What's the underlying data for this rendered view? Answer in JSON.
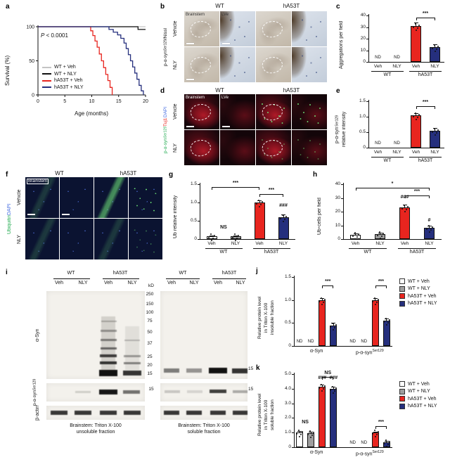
{
  "panel_a": {
    "letter": "a",
    "ylabel": "Survival (%)",
    "xlabel": "Age (months)",
    "pvalue_sym": "P",
    "pvalue_rest": " < 0.0001",
    "chart": {
      "type": "line",
      "xmax": 20,
      "ymax": 100,
      "xticks": [
        0,
        5,
        10,
        15,
        20
      ],
      "yticks": [
        0,
        50,
        100
      ],
      "series": [
        {
          "name": "WT + Veh",
          "color": "#c4c4c4",
          "points": [
            [
              0,
              100
            ],
            [
              20,
              100
            ]
          ]
        },
        {
          "name": "WT + NLY",
          "color": "#111111",
          "points": [
            [
              0,
              100
            ],
            [
              18.6,
              100
            ],
            [
              18.6,
              96
            ],
            [
              20,
              96
            ]
          ]
        },
        {
          "name": "hA53T + Veh",
          "color": "#e8251f",
          "points": [
            [
              0,
              100
            ],
            [
              9.8,
              100
            ],
            [
              9.8,
              94
            ],
            [
              10.2,
              94
            ],
            [
              10.2,
              87
            ],
            [
              10.6,
              87
            ],
            [
              10.6,
              79
            ],
            [
              11,
              79
            ],
            [
              11,
              70
            ],
            [
              11.4,
              70
            ],
            [
              11.4,
              60
            ],
            [
              11.8,
              60
            ],
            [
              11.8,
              50
            ],
            [
              12.2,
              50
            ],
            [
              12.2,
              40
            ],
            [
              12.6,
              40
            ],
            [
              12.6,
              30
            ],
            [
              13,
              30
            ],
            [
              13,
              21
            ],
            [
              13.4,
              21
            ],
            [
              13.4,
              11
            ],
            [
              13.8,
              11
            ],
            [
              13.8,
              0
            ]
          ]
        },
        {
          "name": "hA53T + NLY",
          "color": "#252f7d",
          "points": [
            [
              0,
              100
            ],
            [
              13.2,
              100
            ],
            [
              13.2,
              96
            ],
            [
              14,
              96
            ],
            [
              14,
              92
            ],
            [
              14.8,
              92
            ],
            [
              14.8,
              88
            ],
            [
              15.4,
              88
            ],
            [
              15.4,
              83
            ],
            [
              16,
              83
            ],
            [
              16,
              76
            ],
            [
              16.4,
              76
            ],
            [
              16.4,
              68
            ],
            [
              16.8,
              68
            ],
            [
              16.8,
              59
            ],
            [
              17.2,
              59
            ],
            [
              17.2,
              50
            ],
            [
              17.6,
              50
            ],
            [
              17.6,
              41
            ],
            [
              18,
              41
            ],
            [
              18,
              32
            ],
            [
              18.4,
              32
            ],
            [
              18.4,
              23
            ],
            [
              18.8,
              23
            ],
            [
              18.8,
              14
            ],
            [
              19.2,
              14
            ],
            [
              19.2,
              6
            ],
            [
              19.6,
              6
            ],
            [
              19.6,
              0
            ]
          ]
        }
      ]
    },
    "legend": [
      {
        "label": "WT + Veh",
        "color": "#c4c4c4"
      },
      {
        "label": "WT + NLY",
        "color": "#111111"
      },
      {
        "label": "hA53T + Veh",
        "color": "#e8251f"
      },
      {
        "label": "hA53T + NLY",
        "color": "#252f7d"
      }
    ]
  },
  "panel_b": {
    "letter": "b",
    "groups": [
      "WT",
      "hA53T"
    ],
    "rows": [
      "Vehicle",
      "NLY"
    ],
    "side_pre": "p-α-syn",
    "side_sup": "Ser129",
    "side_post": "/Nissl",
    "img_label_1": "Brainstem",
    "img_label_2": "LVe"
  },
  "panel_c": {
    "letter": "c",
    "ylabel": "Aggregations per field",
    "chart": {
      "type": "bar",
      "ymax": 40,
      "yticks": [
        "0",
        "10",
        "20",
        "30",
        "40"
      ],
      "bars": [
        {
          "nd": "ND",
          "color": "#ffffff"
        },
        {
          "nd": "ND",
          "color": "#9e9e9e"
        },
        {
          "v": 31,
          "e": 3,
          "color": "#e8251f"
        },
        {
          "v": 13,
          "e": 2,
          "color": "#252f7d"
        }
      ],
      "xlabels": [
        "Veh",
        "NLY",
        "Veh",
        "NLY"
      ],
      "groups": [
        {
          "label": "WT",
          "from": 0,
          "to": 1
        },
        {
          "label": "hA53T",
          "from": 2,
          "to": 3
        }
      ],
      "ann": [
        {
          "text": "***",
          "from": 2,
          "to": 3,
          "y": 38
        }
      ]
    }
  },
  "panel_d": {
    "letter": "d",
    "groups": [
      "WT",
      "hA53T"
    ],
    "rows": [
      "Vehicle",
      "NLY"
    ],
    "side1": "p-α-syn",
    "side1sup": "Ser129",
    "side2": " Tuj1",
    "side3": " DAPI",
    "side1_color": "#1faa4e",
    "side2_color": "#e8251f",
    "side3_color": "#4169e1",
    "img_label_1": "Brainstem",
    "img_label_2": "LVe"
  },
  "panel_e": {
    "letter": "e",
    "ylabel1_pre": "p-α-syn",
    "ylabel1_sup": "Ser129",
    "ylabel2": "relative intensity",
    "chart": {
      "type": "bar",
      "ymax": 1.5,
      "yticks": [
        "0",
        "0.5",
        "1.0",
        "1.5"
      ],
      "bars": [
        {
          "nd": "ND",
          "color": "#ffffff"
        },
        {
          "nd": "ND",
          "color": "#9e9e9e"
        },
        {
          "v": 1.05,
          "e": 0.07,
          "color": "#e8251f"
        },
        {
          "v": 0.55,
          "e": 0.08,
          "color": "#252f7d"
        }
      ],
      "xlabels": [
        "Veh",
        "NLY",
        "Veh",
        "NLY"
      ],
      "groups": [
        {
          "label": "WT",
          "from": 0,
          "to": 1
        },
        {
          "label": "hA53T",
          "from": 2,
          "to": 3
        }
      ],
      "ann": [
        {
          "text": "***",
          "from": 2,
          "to": 3,
          "y": 1.35
        }
      ]
    }
  },
  "panel_f": {
    "letter": "f",
    "groups": [
      "WT",
      "hA53T"
    ],
    "rows": [
      "Vehicle",
      "NLY"
    ],
    "side1": "Ubiquitin",
    "side2": " DAPI",
    "side1_color": "#1faa4e",
    "side2_color": "#4169e1",
    "img_label_1": "Brainstem"
  },
  "panel_g": {
    "letter": "g",
    "ylabel": "Ub relative intensity",
    "chart": {
      "type": "bar",
      "ymax": 1.5,
      "yticks": [
        "0",
        "0.5",
        "1.0",
        "1.5"
      ],
      "bars": [
        {
          "v": 0.07,
          "e": 0.03,
          "color": "#ffffff"
        },
        {
          "v": 0.07,
          "e": 0.03,
          "color": "#9e9e9e"
        },
        {
          "v": 1.0,
          "e": 0.06,
          "color": "#e8251f"
        },
        {
          "v": 0.6,
          "e": 0.07,
          "color": "#252f7d"
        }
      ],
      "xlabels": [
        "Veh",
        "NLY",
        "Veh",
        "NLY"
      ],
      "groups": [
        {
          "label": "WT",
          "from": 0,
          "to": 1
        },
        {
          "label": "hA53T",
          "from": 2,
          "to": 3
        }
      ],
      "ann": [
        {
          "text": "***",
          "from": 0,
          "to": 2,
          "y": 1.42
        },
        {
          "text": "***",
          "from": 2,
          "to": 3,
          "y": 1.24
        },
        {
          "text": "###",
          "at": 3,
          "y": 0.8
        },
        {
          "text": "NS",
          "at": 0.5,
          "y": 0.22
        }
      ]
    }
  },
  "panel_h": {
    "letter": "h",
    "ylabel_pre": "Ub",
    "ylabel_sup": "+",
    "ylabel_post": " cells per field",
    "chart": {
      "type": "bar",
      "ymax": 40,
      "yticks": [
        "0",
        "10",
        "20",
        "30",
        "40"
      ],
      "bars": [
        {
          "v": 3,
          "e": 1,
          "color": "#ffffff"
        },
        {
          "v": 3.5,
          "e": 1,
          "color": "#9e9e9e"
        },
        {
          "v": 23,
          "e": 2,
          "color": "#e8251f"
        },
        {
          "v": 8,
          "e": 1.5,
          "color": "#252f7d"
        }
      ],
      "xlabels": [
        "Veh",
        "NLY",
        "Veh",
        "NLY"
      ],
      "groups": [
        {
          "label": "WT",
          "from": 0,
          "to": 1
        },
        {
          "label": "hA53T",
          "from": 2,
          "to": 3
        }
      ],
      "ann": [
        {
          "text": "*",
          "from": 0,
          "to": 3,
          "y": 37.5
        },
        {
          "text": "***",
          "from": 2,
          "to": 3,
          "y": 32
        },
        {
          "text": "###",
          "at": 2,
          "y": 27.5
        },
        {
          "text": "#",
          "at": 3,
          "y": 11
        }
      ]
    }
  },
  "panel_i": {
    "letter": "i",
    "gel_groups": [
      "WT",
      "hA53T"
    ],
    "lane_labels": [
      "Veh",
      "NLY",
      "Veh",
      "NLY"
    ],
    "kd_label": "kD",
    "ladder": [
      "250",
      "150",
      "100",
      "75",
      "50",
      "37",
      "25",
      "20",
      "15"
    ],
    "marker15": "15",
    "row1": "α-Syn",
    "row2_pre": "p-α-syn",
    "row2_sup": "Ser129",
    "row3": "β-actin",
    "caption1a": "Brainstem: Triton X-100",
    "caption1b": "unsoluble fraction",
    "caption2a": "Brainstem: Triton X-100",
    "caption2b": "soluble fraction"
  },
  "panel_j": {
    "letter": "j",
    "ylabel1": "Relative protein level",
    "ylabel2": "in Triton X-100",
    "ylabel3": "insoluble fraction",
    "chart": {
      "type": "bar",
      "ymax": 1.5,
      "yticks": [
        "0",
        "0.5",
        "1.0",
        "1.5"
      ],
      "gapAfter": 3,
      "bars": [
        {
          "nd": "ND",
          "color": "#ffffff"
        },
        {
          "nd": "ND",
          "color": "#9e9e9e"
        },
        {
          "v": 1.0,
          "e": 0.04,
          "color": "#e8251f"
        },
        {
          "v": 0.45,
          "e": 0.05,
          "color": "#252f7d"
        },
        {
          "nd": "ND",
          "color": "#ffffff"
        },
        {
          "nd": "ND",
          "color": "#9e9e9e"
        },
        {
          "v": 1.0,
          "e": 0.04,
          "color": "#e8251f"
        },
        {
          "v": 0.55,
          "e": 0.05,
          "color": "#252f7d"
        }
      ],
      "groups": [
        {
          "label_pre": "α-Syn",
          "from": 0,
          "to": 3
        },
        {
          "label_pre": "p-α-syn",
          "label_sup": "Ser129",
          "from": 4,
          "to": 7
        }
      ],
      "ann": [
        {
          "text": "***",
          "from": 2,
          "to": 3,
          "y": 1.32
        },
        {
          "text": "***",
          "from": 6,
          "to": 7,
          "y": 1.32
        }
      ]
    },
    "legend": [
      {
        "label": "WT + Veh",
        "color": "#ffffff"
      },
      {
        "label": "WT + NLY",
        "color": "#9e9e9e"
      },
      {
        "label": "hA53T + Veh",
        "color": "#e8251f"
      },
      {
        "label": "hA53T + NLY",
        "color": "#252f7d"
      }
    ]
  },
  "panel_k": {
    "letter": "k",
    "ylabel1": "Relative protein level",
    "ylabel2": "in Triton X-100",
    "ylabel3": "soluble fraction",
    "chart": {
      "type": "bar",
      "ymax": 5,
      "yticks": [
        "0",
        "1.0",
        "2.0",
        "3.0",
        "4.0",
        "5.0"
      ],
      "gapAfter": 3,
      "bars": [
        {
          "v": 1.0,
          "e": 0.1,
          "color": "#ffffff"
        },
        {
          "v": 0.95,
          "e": 0.1,
          "color": "#9e9e9e"
        },
        {
          "v": 4.15,
          "e": 0.12,
          "color": "#e8251f"
        },
        {
          "v": 4.0,
          "e": 0.12,
          "color": "#252f7d"
        },
        {
          "nd": "ND",
          "color": "#ffffff"
        },
        {
          "nd": "ND",
          "color": "#9e9e9e"
        },
        {
          "v": 1.0,
          "e": 0.08,
          "color": "#e8251f"
        },
        {
          "v": 0.35,
          "e": 0.06,
          "color": "#252f7d"
        }
      ],
      "groups": [
        {
          "label_pre": "α-Syn",
          "from": 0,
          "to": 3
        },
        {
          "label_pre": "p-α-syn",
          "label_sup": "Ser129",
          "from": 4,
          "to": 7
        }
      ],
      "ann": [
        {
          "text": "NS",
          "from": 2,
          "to": 3,
          "y": 4.8
        },
        {
          "text": "###",
          "at": 2,
          "y": 4.45
        },
        {
          "text": "###",
          "at": 3,
          "y": 4.45
        },
        {
          "text": "NS",
          "at": 0.5,
          "y": 1.45
        },
        {
          "text": "***",
          "from": 6,
          "to": 7,
          "y": 1.45
        }
      ]
    },
    "legend": [
      {
        "label": "WT + Veh",
        "color": "#ffffff"
      },
      {
        "label": "WT + NLY",
        "color": "#9e9e9e"
      },
      {
        "label": "hA53T + Veh",
        "color": "#e8251f"
      },
      {
        "label": "hA53T + NLY",
        "color": "#252f7d"
      }
    ]
  }
}
